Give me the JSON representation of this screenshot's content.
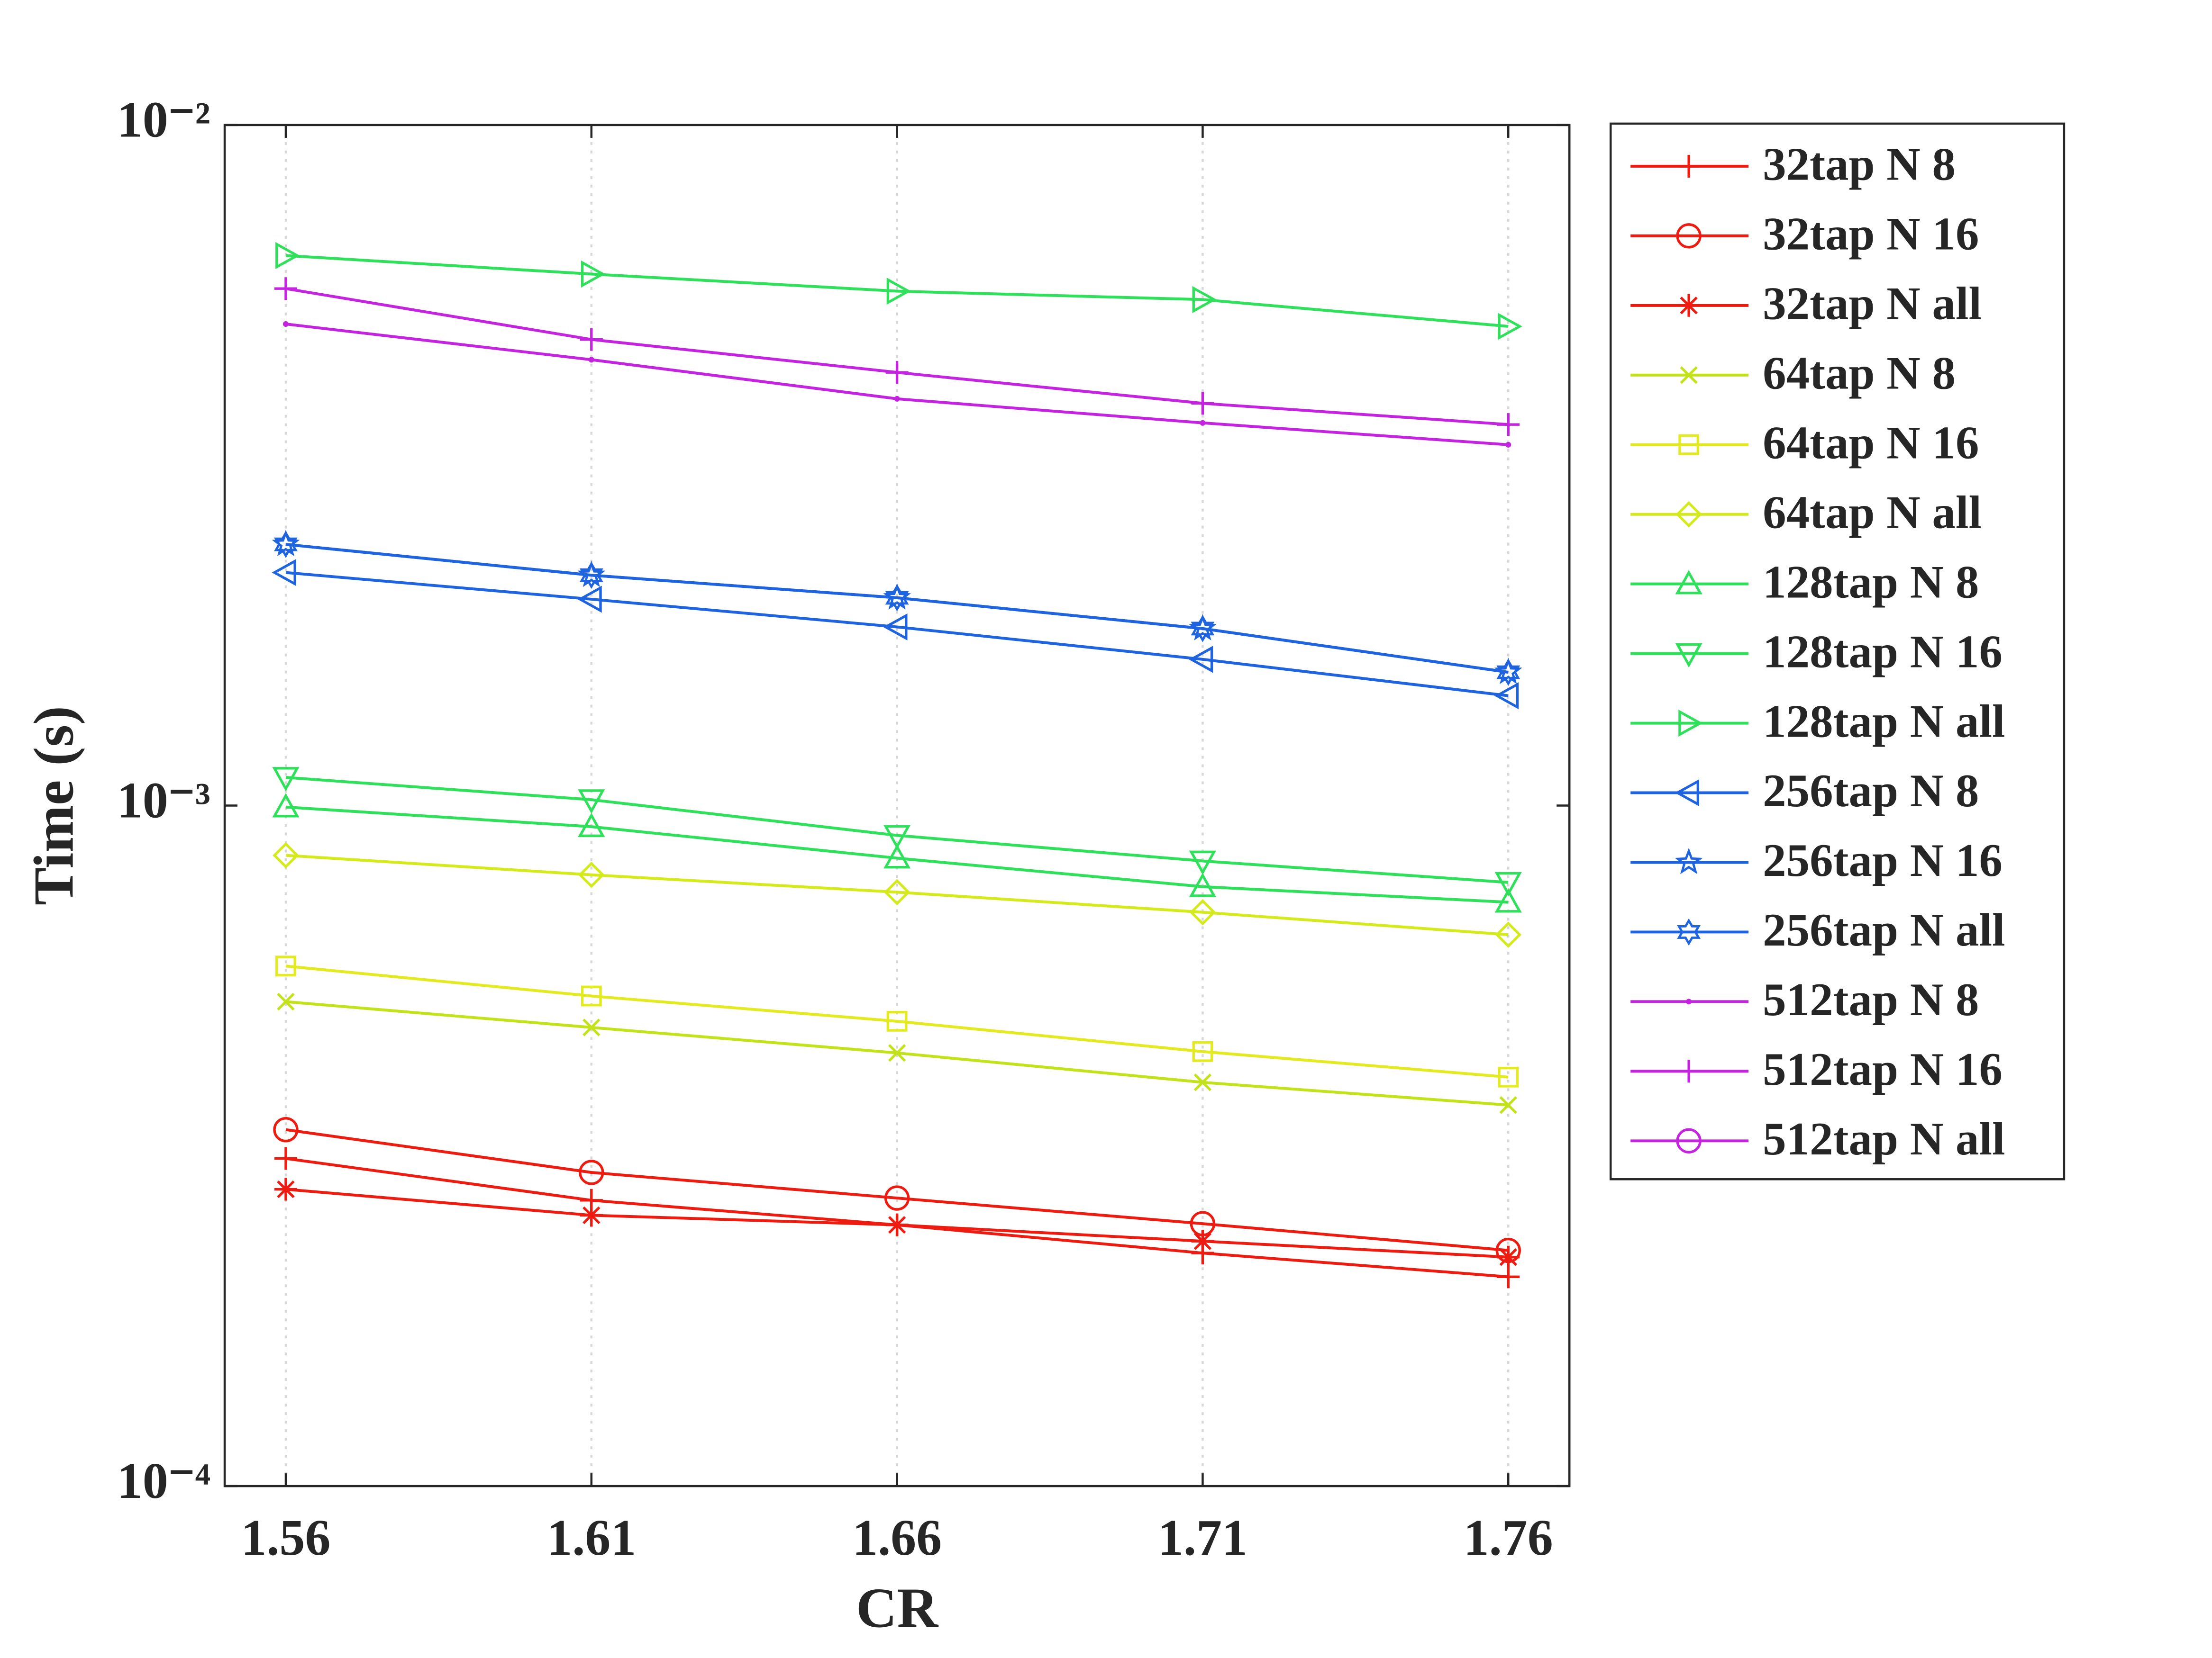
{
  "chart_data": {
    "type": "line",
    "x_label": "CR",
    "y_label": "Time (s)",
    "x": [
      1.56,
      1.61,
      1.66,
      1.71,
      1.76
    ],
    "xlim": [
      1.55,
      1.77
    ],
    "xticks": [
      1.56,
      1.61,
      1.66,
      1.71,
      1.76
    ],
    "ylim": [
      0.0001,
      0.01
    ],
    "yticks": [
      {
        "value": 0.0001,
        "label": "10⁻⁴"
      },
      {
        "value": 0.001,
        "label": "10⁻³"
      },
      {
        "value": 0.01,
        "label": "10⁻²"
      }
    ],
    "log_y": true,
    "grid": true,
    "legend": "outside-right",
    "series": [
      {
        "name": "32tap N 8",
        "color": "#ee1c10",
        "marker": "plus",
        "values": [
          0.000303,
          0.000263,
          0.000242,
          0.00022,
          0.000203
        ]
      },
      {
        "name": "32tap N 16",
        "color": "#ee1c10",
        "marker": "circle",
        "values": [
          0.000334,
          0.000289,
          0.000265,
          0.000243,
          0.000222
        ]
      },
      {
        "name": "32tap N all",
        "color": "#ee1c10",
        "marker": "asterisk",
        "values": [
          0.000273,
          0.00025,
          0.000242,
          0.000229,
          0.000217
        ]
      },
      {
        "name": "64tap N 8",
        "color": "#c4e21a",
        "marker": "x",
        "values": [
          0.000515,
          0.000472,
          0.000433,
          0.000392,
          0.000363
        ]
      },
      {
        "name": "64tap N 16",
        "color": "#e4ea20",
        "marker": "square",
        "values": [
          0.000581,
          0.000525,
          0.000482,
          0.000435,
          0.000399
        ]
      },
      {
        "name": "64tap N all",
        "color": "#d4ea1a",
        "marker": "diamond",
        "values": [
          0.000845,
          0.000791,
          0.000746,
          0.000697,
          0.000646
        ]
      },
      {
        "name": "128tap N 8",
        "color": "#2ee05a",
        "marker": "tri-up",
        "values": [
          0.000995,
          0.000931,
          0.000837,
          0.00076,
          0.000721
        ]
      },
      {
        "name": "128tap N 16",
        "color": "#2ee05a",
        "marker": "tri-down",
        "values": [
          0.0011,
          0.00102,
          0.000904,
          0.000829,
          0.000771
        ]
      },
      {
        "name": "128tap N all",
        "color": "#2ee05a",
        "marker": "tri-right",
        "values": [
          0.00643,
          0.00604,
          0.0057,
          0.00554,
          0.00506
        ]
      },
      {
        "name": "256tap N 8",
        "color": "#1e64e0",
        "marker": "tri-left",
        "values": [
          0.0022,
          0.00201,
          0.00183,
          0.00164,
          0.00145
        ]
      },
      {
        "name": "256tap N 16",
        "color": "#1e64e0",
        "marker": "star",
        "values": [
          0.00242,
          0.00218,
          0.00202,
          0.00182,
          0.00157
        ]
      },
      {
        "name": "256tap N all",
        "color": "#1e64e0",
        "marker": "hexagram",
        "values": [
          0.00242,
          0.00218,
          0.00202,
          0.00182,
          0.00157
        ]
      },
      {
        "name": "512tap N 8",
        "color": "#c424e0",
        "marker": "dot",
        "values": [
          0.0051,
          0.00452,
          0.00396,
          0.00365,
          0.00339
        ]
      },
      {
        "name": "512tap N 16",
        "color": "#c424e0",
        "marker": "plus",
        "values": [
          0.00575,
          0.00484,
          0.00433,
          0.0039,
          0.00363
        ]
      },
      {
        "name": "512tap N all",
        "color": "#c424e0",
        "marker": "circle",
        "values": [
          null,
          null,
          null,
          null,
          null
        ]
      }
    ]
  }
}
